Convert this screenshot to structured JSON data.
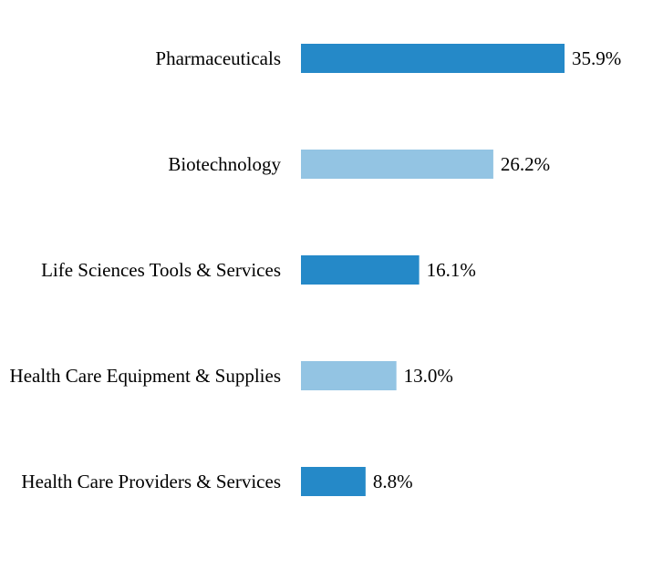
{
  "chart_data": {
    "type": "bar",
    "orientation": "horizontal",
    "categories": [
      "Pharmaceuticals",
      "Biotechnology",
      "Life Sciences Tools & Services",
      "Health Care Equipment & Supplies",
      "Health Care Providers & Services"
    ],
    "values": [
      35.9,
      26.2,
      16.1,
      13.0,
      8.8
    ],
    "value_labels": [
      "35.9%",
      "26.2%",
      "16.1%",
      "13.0%",
      "8.8%"
    ],
    "unit": "%",
    "title": "",
    "xlabel": "",
    "ylabel": "",
    "xlim": [
      0,
      35.9
    ],
    "grid": false,
    "legend": "none",
    "colors": [
      "#2589c8",
      "#93c4e3",
      "#2589c8",
      "#93c4e3",
      "#2589c8"
    ]
  }
}
